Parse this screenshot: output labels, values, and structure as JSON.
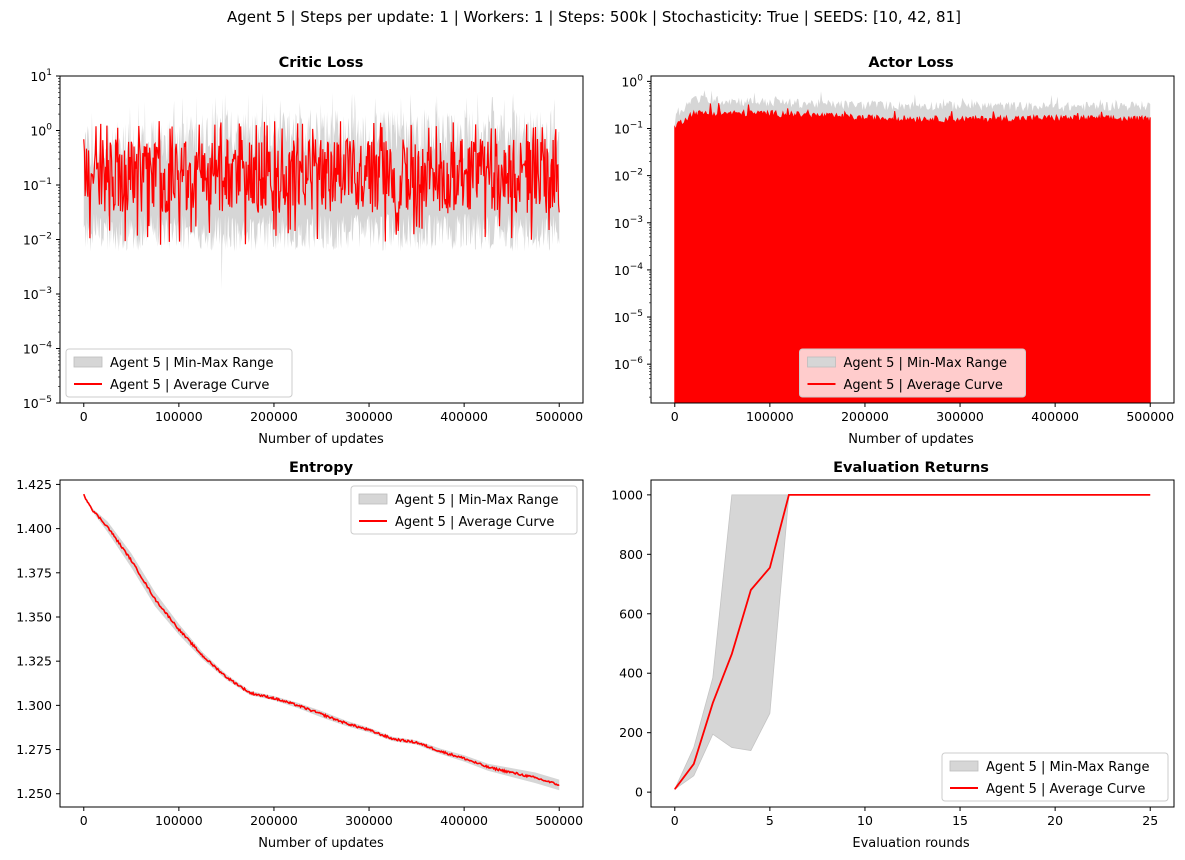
{
  "suptitle": "Agent 5 | Steps per update: 1 | Workers: 1 | Steps: 500k | Stochasticity: True | SEEDS: [10, 42, 81]",
  "colors": {
    "range": "#d6d6d6",
    "average": "#ff0000",
    "axis": "#000000"
  },
  "chart_data": [
    {
      "id": "critic",
      "type": "area",
      "title": "Critic Loss",
      "xlabel": "Number of updates",
      "ylabel": "",
      "xlim": [
        -25000,
        525000
      ],
      "ylim": [
        1e-05,
        10
      ],
      "yscale": "log",
      "xticks": [
        0,
        100000,
        200000,
        300000,
        400000,
        500000
      ],
      "xtick_labels": [
        "0",
        "100000",
        "200000",
        "300000",
        "400000",
        "500000"
      ],
      "yticks": [
        1e-05,
        0.0001,
        0.001,
        0.01,
        0.1,
        1,
        10
      ],
      "ytick_labels": [
        [
          "10",
          "−5"
        ],
        [
          "10",
          "−4"
        ],
        [
          "10",
          "−3"
        ],
        [
          "10",
          "−2"
        ],
        [
          "10",
          "−1"
        ],
        [
          "10",
          "0"
        ],
        [
          "10",
          "1"
        ]
      ],
      "legend": {
        "placement": "lower-left",
        "entries": [
          "Agent 5 | Min-Max Range",
          "Agent 5 | Average Curve"
        ]
      },
      "series": [
        {
          "name": "Agent 5 | Average Curve",
          "style": "noisy",
          "x_range": [
            0,
            500000
          ],
          "typical_range": [
            0.03,
            0.7
          ],
          "spike_max": 1.5,
          "approx_mean": 0.1
        },
        {
          "name": "Agent 5 | Min-Max Range",
          "style": "band",
          "min_typical": [
            0.006,
            0.03
          ],
          "max_typical": [
            0.3,
            2.5
          ],
          "max_peak": 5,
          "min_trough": 0.0012
        }
      ]
    },
    {
      "id": "actor",
      "type": "area",
      "title": "Actor Loss",
      "xlabel": "Number of updates",
      "ylabel": "",
      "xlim": [
        -25000,
        525000
      ],
      "ylim": [
        1.5e-07,
        1.3
      ],
      "yscale": "log",
      "xticks": [
        0,
        100000,
        200000,
        300000,
        400000,
        500000
      ],
      "xtick_labels": [
        "0",
        "100000",
        "200000",
        "300000",
        "400000",
        "500000"
      ],
      "yticks": [
        1e-06,
        1e-05,
        0.0001,
        0.001,
        0.01,
        0.1,
        1
      ],
      "ytick_labels": [
        [
          "10",
          "−6"
        ],
        [
          "10",
          "−5"
        ],
        [
          "10",
          "−4"
        ],
        [
          "10",
          "−3"
        ],
        [
          "10",
          "−2"
        ],
        [
          "10",
          "−1"
        ],
        [
          "10",
          "0"
        ]
      ],
      "legend": {
        "placement": "lower-center",
        "entries": [
          "Agent 5 | Min-Max Range",
          "Agent 5 | Average Curve"
        ]
      },
      "series": [
        {
          "name": "Agent 5 | Average Curve",
          "style": "dense-to-floor",
          "x_range": [
            0,
            500000
          ],
          "upper_envelope": [
            [
              0,
              0.1
            ],
            [
              20000,
              0.2
            ],
            [
              100000,
              0.2
            ],
            [
              200000,
              0.16
            ],
            [
              300000,
              0.15
            ],
            [
              400000,
              0.16
            ],
            [
              500000,
              0.15
            ]
          ]
        },
        {
          "name": "Agent 5 | Min-Max Range",
          "style": "dense-to-floor",
          "upper_envelope": [
            [
              0,
              0.15
            ],
            [
              20000,
              0.4
            ],
            [
              100000,
              0.35
            ],
            [
              200000,
              0.3
            ],
            [
              300000,
              0.3
            ],
            [
              400000,
              0.28
            ],
            [
              500000,
              0.3
            ]
          ]
        }
      ]
    },
    {
      "id": "entropy",
      "type": "line",
      "title": "Entropy",
      "xlabel": "Number of updates",
      "ylabel": "",
      "xlim": [
        -25000,
        525000
      ],
      "ylim": [
        1.2425,
        1.4275
      ],
      "yscale": "linear",
      "xticks": [
        0,
        100000,
        200000,
        300000,
        400000,
        500000
      ],
      "xtick_labels": [
        "0",
        "100000",
        "200000",
        "300000",
        "400000",
        "500000"
      ],
      "yticks": [
        1.25,
        1.275,
        1.3,
        1.325,
        1.35,
        1.375,
        1.4,
        1.425
      ],
      "ytick_labels": [
        "1.250",
        "1.275",
        "1.300",
        "1.325",
        "1.350",
        "1.375",
        "1.400",
        "1.425"
      ],
      "legend": {
        "placement": "upper-right",
        "entries": [
          "Agent 5 | Min-Max Range",
          "Agent 5 | Average Curve"
        ]
      },
      "series": [
        {
          "name": "Agent 5 | Average Curve",
          "x": [
            0,
            10000,
            25000,
            50000,
            75000,
            100000,
            125000,
            150000,
            175000,
            200000,
            225000,
            250000,
            275000,
            300000,
            325000,
            350000,
            375000,
            400000,
            425000,
            450000,
            475000,
            500000
          ],
          "y": [
            1.419,
            1.41,
            1.401,
            1.382,
            1.36,
            1.343,
            1.328,
            1.316,
            1.307,
            1.304,
            1.3,
            1.295,
            1.29,
            1.286,
            1.281,
            1.279,
            1.274,
            1.27,
            1.265,
            1.262,
            1.259,
            1.255
          ]
        },
        {
          "name": "Agent 5 | Min-Max Range",
          "half_width": [
            0.0005,
            0.001,
            0.003,
            0.004,
            0.004,
            0.003,
            0.002,
            0.0015,
            0.0012,
            0.0012,
            0.0015,
            0.0018,
            0.0015,
            0.0013,
            0.0012,
            0.0012,
            0.0015,
            0.0018,
            0.002,
            0.0025,
            0.003,
            0.003
          ]
        }
      ]
    },
    {
      "id": "eval",
      "type": "line",
      "title": "Evaluation Returns",
      "xlabel": "Evaluation rounds",
      "ylabel": "",
      "xlim": [
        -1.25,
        26.25
      ],
      "ylim": [
        -50,
        1050
      ],
      "yscale": "linear",
      "xticks": [
        0,
        5,
        10,
        15,
        20,
        25
      ],
      "xtick_labels": [
        "0",
        "5",
        "10",
        "15",
        "20",
        "25"
      ],
      "yticks": [
        0,
        200,
        400,
        600,
        800,
        1000
      ],
      "ytick_labels": [
        "0",
        "200",
        "400",
        "600",
        "800",
        "1000"
      ],
      "legend": {
        "placement": "lower-right",
        "entries": [
          "Agent 5 | Min-Max Range",
          "Agent 5 | Average Curve"
        ]
      },
      "series": [
        {
          "name": "Agent 5 | Average Curve",
          "x": [
            0,
            1,
            2,
            3,
            4,
            5,
            6,
            7,
            8,
            9,
            10,
            11,
            12,
            13,
            14,
            15,
            16,
            17,
            18,
            19,
            20,
            21,
            22,
            23,
            24,
            25
          ],
          "y": [
            10,
            95,
            300,
            465,
            680,
            755,
            1000,
            1000,
            1000,
            1000,
            1000,
            1000,
            1000,
            1000,
            1000,
            1000,
            1000,
            1000,
            1000,
            1000,
            1000,
            1000,
            1000,
            1000,
            1000,
            1000
          ]
        },
        {
          "name": "Agent 5 | Min-Max Range",
          "min": [
            10,
            55,
            195,
            150,
            140,
            265,
            1000,
            1000,
            1000,
            1000,
            1000,
            1000,
            1000,
            1000,
            1000,
            1000,
            1000,
            1000,
            1000,
            1000,
            1000,
            1000,
            1000,
            1000,
            1000,
            1000
          ],
          "max": [
            10,
            150,
            385,
            1000,
            1000,
            1000,
            1000,
            1000,
            1000,
            1000,
            1000,
            1000,
            1000,
            1000,
            1000,
            1000,
            1000,
            1000,
            1000,
            1000,
            1000,
            1000,
            1000,
            1000,
            1000,
            1000
          ]
        }
      ]
    }
  ]
}
